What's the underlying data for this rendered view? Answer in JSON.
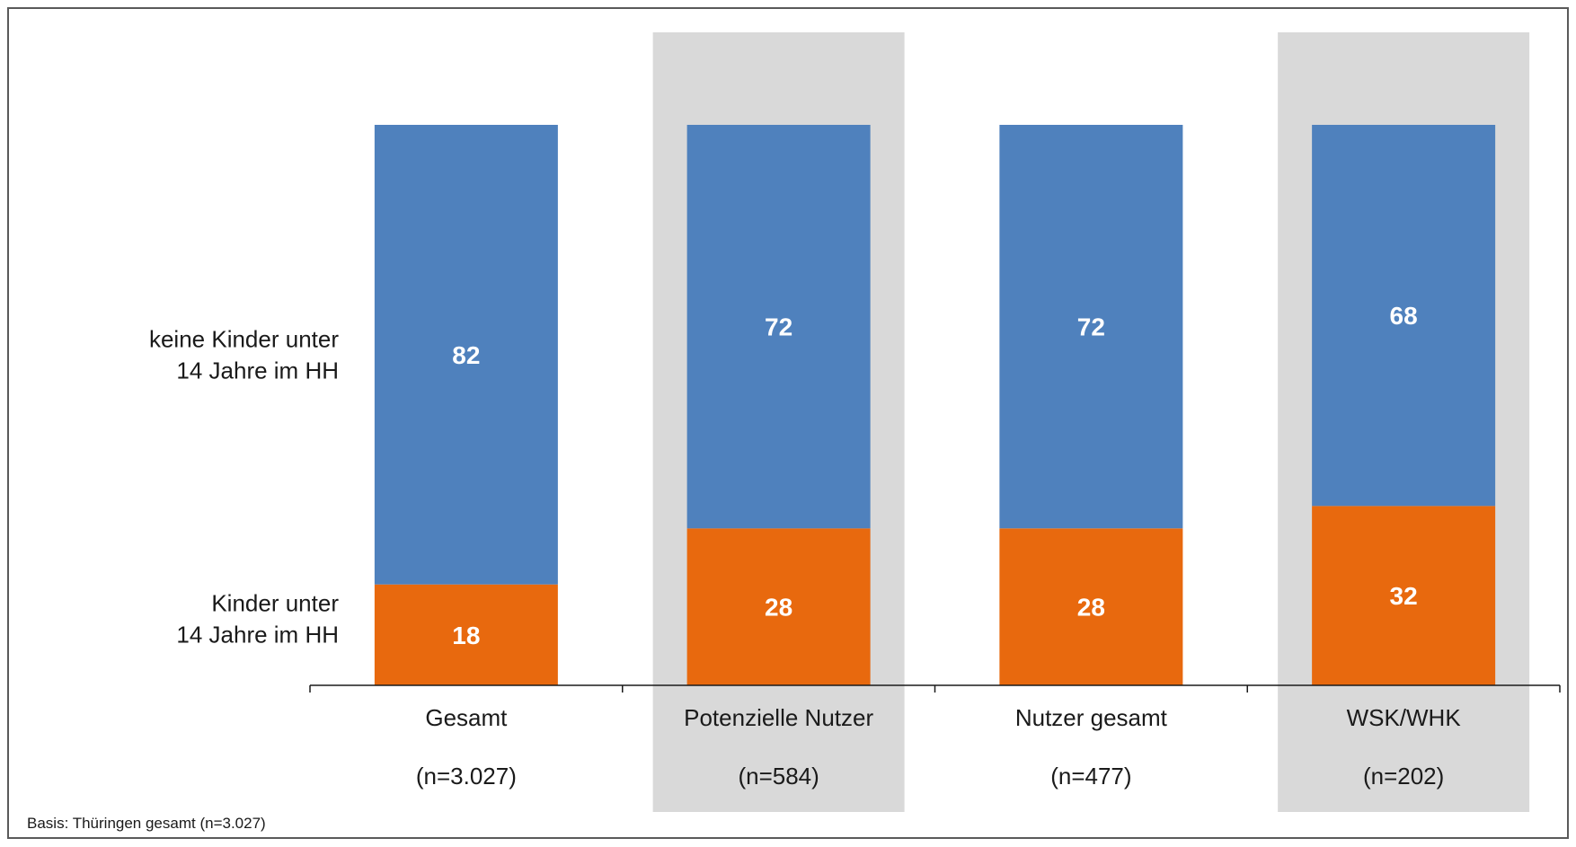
{
  "chart_data": {
    "type": "bar",
    "stacked": true,
    "orientation": "vertical",
    "ylim": [
      0,
      100
    ],
    "grid": false,
    "legend_placement": "left",
    "categories": [
      "Gesamt",
      "Potenzielle Nutzer",
      "Nutzer gesamt",
      "WSK/WHK"
    ],
    "sample_sizes": [
      "(n=3.027)",
      "(n=584)",
      "(n=477)",
      "(n=202)"
    ],
    "highlighted_categories": [
      false,
      true,
      false,
      true
    ],
    "series": [
      {
        "name": "Kinder unter 14 Jahre im HH",
        "legend_lines": [
          "Kinder unter",
          "14 Jahre im HH"
        ],
        "color": "#E8690E",
        "values": [
          18,
          28,
          28,
          32
        ]
      },
      {
        "name": "keine Kinder unter 14 Jahre im HH",
        "legend_lines": [
          "keine Kinder unter",
          "14 Jahre im HH"
        ],
        "color": "#4F81BD",
        "values": [
          82,
          72,
          72,
          68
        ]
      }
    ],
    "highlight_color": "#D9D9D9",
    "axis_color": "#1a1a1a"
  },
  "footnote": "Basis: Thüringen gesamt (n=3.027)"
}
